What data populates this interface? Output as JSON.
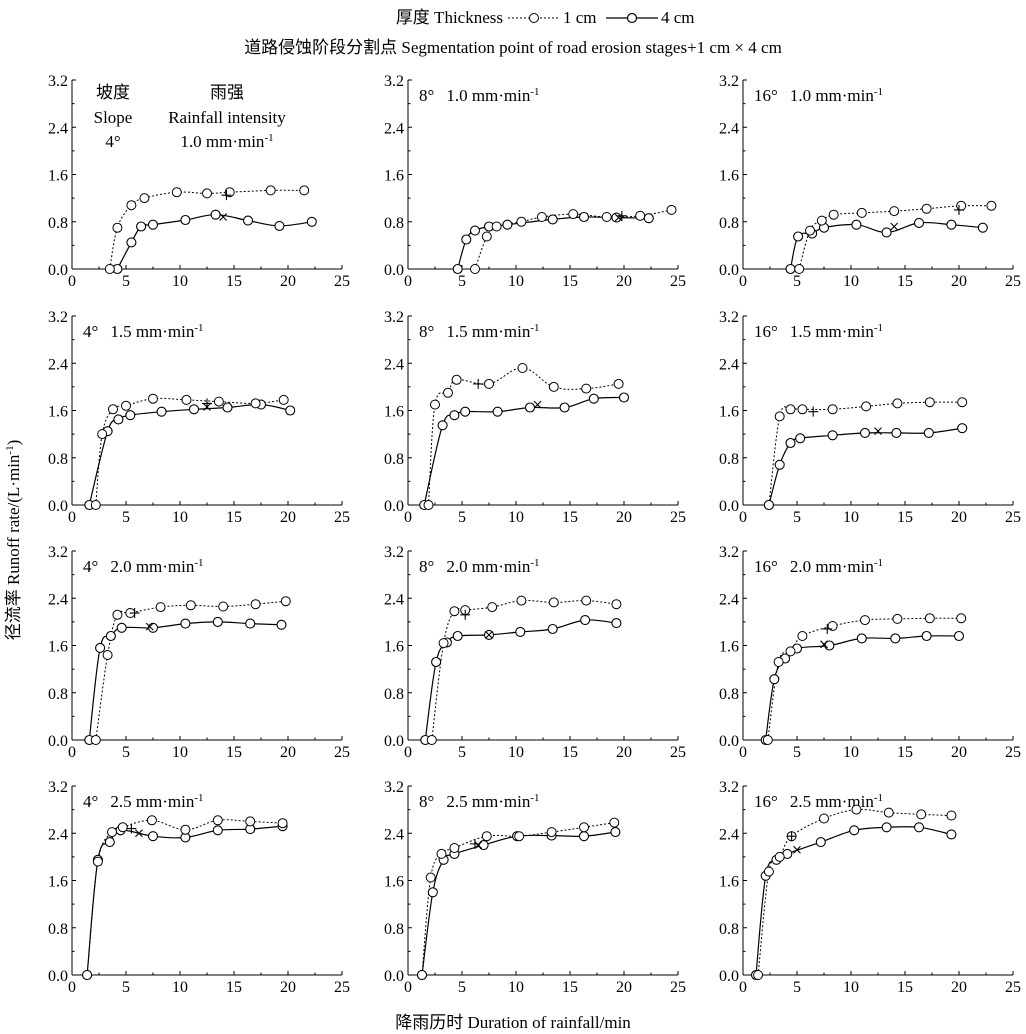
{
  "legend": {
    "thickness_label": "厚度 Thickness",
    "series_1cm": "1 cm",
    "series_4cm": "4 cm",
    "segmentation_label": "道路侵蚀阶段分割点 Segmentation point of road erosion stages",
    "segmentation_markers": "+1 cm × 4 cm"
  },
  "axes": {
    "xlabel": "降雨历时 Duration of rainfall/min",
    "ylabel": "径流率 Runoff rate/(L·min",
    "ylabel_sup": "-1",
    "ylabel_close": ")"
  },
  "first_panel_note": {
    "slope_cn": "坡度",
    "slope_en": "Slope",
    "rain_cn": "雨强",
    "rain_en": "Rainfall intensity"
  },
  "chart_data": {
    "type": "line",
    "grid": false,
    "xlim": [
      0,
      25
    ],
    "ylim": [
      0,
      3.2
    ],
    "xticks": [
      "0",
      "5",
      "10",
      "15",
      "20",
      "25"
    ],
    "yticks": [
      "0.0",
      "0.8",
      "1.6",
      "2.4",
      "3.2"
    ],
    "panels": [
      {
        "slope": "4°",
        "intensity": "1.0 mm·min",
        "unit_sup": "-1",
        "s1": [
          [
            3.5,
            0
          ],
          [
            4.2,
            0.7
          ],
          [
            5.5,
            1.08
          ],
          [
            6.7,
            1.2
          ],
          [
            9.7,
            1.3
          ],
          [
            12.5,
            1.28
          ],
          [
            14.6,
            1.3
          ],
          [
            18.4,
            1.33
          ],
          [
            21.5,
            1.33
          ]
        ],
        "s4": [
          [
            4.2,
            0
          ],
          [
            5.5,
            0.45
          ],
          [
            6.4,
            0.72
          ],
          [
            7.5,
            0.75
          ],
          [
            10.5,
            0.83
          ],
          [
            13.3,
            0.92
          ],
          [
            16.3,
            0.82
          ],
          [
            19.2,
            0.73
          ],
          [
            22.2,
            0.8
          ]
        ],
        "plus": [
          14.3,
          1.25
        ],
        "cross": [
          14,
          0.88
        ]
      },
      {
        "slope": "8°",
        "intensity": "1.0 mm·min",
        "unit_sup": "-1",
        "s1": [
          [
            6.2,
            0
          ],
          [
            7.3,
            0.55
          ],
          [
            8.2,
            0.72
          ],
          [
            10.5,
            0.8
          ],
          [
            12.4,
            0.88
          ],
          [
            15.3,
            0.93
          ],
          [
            18.4,
            0.88
          ],
          [
            21.5,
            0.9
          ],
          [
            24.4,
            1.0
          ]
        ],
        "s4": [
          [
            4.6,
            0
          ],
          [
            5.4,
            0.5
          ],
          [
            6.2,
            0.65
          ],
          [
            7.5,
            0.72
          ],
          [
            9.2,
            0.75
          ],
          [
            13.4,
            0.84
          ],
          [
            16.3,
            0.88
          ],
          [
            19.3,
            0.87
          ],
          [
            22.3,
            0.86
          ]
        ],
        "plus": [
          19.8,
          0.9
        ],
        "cross": [
          19.5,
          0.87
        ]
      },
      {
        "slope": "16°",
        "intensity": "1.0 mm·min",
        "unit_sup": "-1",
        "s1": [
          [
            5.2,
            0
          ],
          [
            6.2,
            0.65
          ],
          [
            7.3,
            0.82
          ],
          [
            8.4,
            0.92
          ],
          [
            11,
            0.95
          ],
          [
            14,
            0.98
          ],
          [
            17,
            1.02
          ],
          [
            20.2,
            1.07
          ],
          [
            23,
            1.07
          ]
        ],
        "s4": [
          [
            4.4,
            0
          ],
          [
            5.1,
            0.55
          ],
          [
            6.4,
            0.6
          ],
          [
            7.5,
            0.7
          ],
          [
            10.5,
            0.75
          ],
          [
            13.3,
            0.62
          ],
          [
            16.3,
            0.78
          ],
          [
            19.3,
            0.75
          ],
          [
            22.2,
            0.7
          ]
        ],
        "plus": [
          20,
          1.0
        ],
        "cross": [
          14,
          0.72
        ]
      },
      {
        "slope": "4°",
        "intensity": "1.5 mm·min",
        "unit_sup": "-1",
        "s1": [
          [
            2.2,
            0
          ],
          [
            2.8,
            1.2
          ],
          [
            3.8,
            1.62
          ],
          [
            5,
            1.68
          ],
          [
            7.5,
            1.8
          ],
          [
            10.6,
            1.78
          ],
          [
            13.6,
            1.75
          ],
          [
            17,
            1.72
          ],
          [
            19.6,
            1.78
          ]
        ],
        "s4": [
          [
            1.6,
            0
          ],
          [
            3.3,
            1.25
          ],
          [
            4.3,
            1.45
          ],
          [
            5.4,
            1.52
          ],
          [
            8.3,
            1.58
          ],
          [
            11.3,
            1.62
          ],
          [
            14.4,
            1.65
          ],
          [
            17.5,
            1.7
          ],
          [
            20.2,
            1.6
          ]
        ],
        "plus": [
          12.5,
          1.72
        ],
        "cross": [
          12.5,
          1.66
        ]
      },
      {
        "slope": "8°",
        "intensity": "1.5 mm·min",
        "unit_sup": "-1",
        "s1": [
          [
            1.9,
            0
          ],
          [
            2.5,
            1.7
          ],
          [
            3.7,
            1.9
          ],
          [
            4.5,
            2.12
          ],
          [
            7.5,
            2.05
          ],
          [
            10.6,
            2.32
          ],
          [
            13.5,
            2.0
          ],
          [
            16.5,
            1.97
          ],
          [
            19.5,
            2.05
          ]
        ],
        "s4": [
          [
            1.5,
            0
          ],
          [
            3.2,
            1.35
          ],
          [
            4.3,
            1.52
          ],
          [
            5.3,
            1.58
          ],
          [
            8.3,
            1.58
          ],
          [
            11.3,
            1.65
          ],
          [
            14.5,
            1.65
          ],
          [
            17.2,
            1.8
          ],
          [
            20,
            1.82
          ]
        ],
        "plus": [
          6.5,
          2.05
        ],
        "cross": [
          12,
          1.7
        ]
      },
      {
        "slope": "16°",
        "intensity": "1.5 mm·min",
        "unit_sup": "-1",
        "s1": [
          [
            2.4,
            0
          ],
          [
            3.4,
            1.5
          ],
          [
            4.4,
            1.62
          ],
          [
            5.5,
            1.62
          ],
          [
            8.3,
            1.62
          ],
          [
            11.4,
            1.67
          ],
          [
            14.3,
            1.72
          ],
          [
            17.3,
            1.74
          ],
          [
            20.3,
            1.74
          ]
        ],
        "s4": [
          [
            2.4,
            0
          ],
          [
            3.4,
            0.68
          ],
          [
            4.4,
            1.05
          ],
          [
            5.3,
            1.13
          ],
          [
            8.3,
            1.18
          ],
          [
            11.3,
            1.22
          ],
          [
            14.2,
            1.22
          ],
          [
            17.2,
            1.22
          ],
          [
            20.3,
            1.3
          ]
        ],
        "plus": [
          6.5,
          1.58
        ],
        "cross": [
          12.5,
          1.25
        ]
      },
      {
        "slope": "4°",
        "intensity": "2.0 mm·min",
        "unit_sup": "-1",
        "s1": [
          [
            2.2,
            0
          ],
          [
            3.3,
            1.44
          ],
          [
            4.2,
            2.12
          ],
          [
            5.4,
            2.15
          ],
          [
            8.2,
            2.25
          ],
          [
            11,
            2.28
          ],
          [
            14,
            2.26
          ],
          [
            17,
            2.3
          ],
          [
            19.8,
            2.35
          ]
        ],
        "s4": [
          [
            1.6,
            0
          ],
          [
            2.6,
            1.56
          ],
          [
            3.6,
            1.76
          ],
          [
            4.6,
            1.9
          ],
          [
            7.5,
            1.9
          ],
          [
            10.5,
            1.97
          ],
          [
            13.5,
            2.0
          ],
          [
            16.5,
            1.97
          ],
          [
            19.4,
            1.95
          ]
        ],
        "plus": [
          5.8,
          2.15
        ],
        "cross": [
          7.2,
          1.92
        ]
      },
      {
        "slope": "8°",
        "intensity": "2.0 mm·min",
        "unit_sup": "-1",
        "s1": [
          [
            2.2,
            0
          ],
          [
            3.3,
            1.64
          ],
          [
            4.3,
            2.18
          ],
          [
            5.3,
            2.2
          ],
          [
            7.8,
            2.25
          ],
          [
            10.5,
            2.36
          ],
          [
            13.5,
            2.33
          ],
          [
            16.5,
            2.36
          ],
          [
            19.3,
            2.3
          ]
        ],
        "s4": [
          [
            1.6,
            0
          ],
          [
            2.6,
            1.32
          ],
          [
            3.6,
            1.65
          ],
          [
            4.6,
            1.76
          ],
          [
            7.5,
            1.78
          ],
          [
            10.4,
            1.83
          ],
          [
            13.4,
            1.88
          ],
          [
            16.4,
            2.03
          ],
          [
            19.3,
            1.98
          ]
        ],
        "plus": [
          5.3,
          2.12
        ],
        "cross": [
          7.5,
          1.78
        ]
      },
      {
        "slope": "16°",
        "intensity": "2.0 mm·min",
        "unit_sup": "-1",
        "s1": [
          [
            2.3,
            0
          ],
          [
            3.3,
            1.32
          ],
          [
            4.4,
            1.5
          ],
          [
            5.5,
            1.76
          ],
          [
            8.3,
            1.93
          ],
          [
            11.3,
            2.03
          ],
          [
            14.3,
            2.05
          ],
          [
            17.3,
            2.06
          ],
          [
            20.2,
            2.06
          ]
        ],
        "s4": [
          [
            2.1,
            0
          ],
          [
            2.9,
            1.03
          ],
          [
            3.9,
            1.38
          ],
          [
            5,
            1.55
          ],
          [
            8,
            1.6
          ],
          [
            11,
            1.72
          ],
          [
            14.1,
            1.72
          ],
          [
            17,
            1.76
          ],
          [
            20,
            1.76
          ]
        ],
        "plus": [
          7.8,
          1.88
        ],
        "cross": [
          7.5,
          1.62
        ]
      },
      {
        "slope": "4°",
        "intensity": "2.5 mm·min",
        "unit_sup": "-1",
        "s1": [
          [
            1.4,
            0
          ],
          [
            2.4,
            1.92
          ],
          [
            3.7,
            2.42
          ],
          [
            4.7,
            2.5
          ],
          [
            7.4,
            2.62
          ],
          [
            10.5,
            2.46
          ],
          [
            13.5,
            2.62
          ],
          [
            16.5,
            2.6
          ],
          [
            19.5,
            2.57
          ]
        ],
        "s4": [
          [
            1.4,
            0
          ],
          [
            2.4,
            1.95
          ],
          [
            3.5,
            2.25
          ],
          [
            4.5,
            2.45
          ],
          [
            7.5,
            2.35
          ],
          [
            10.5,
            2.33
          ],
          [
            13.5,
            2.45
          ],
          [
            16.5,
            2.47
          ],
          [
            19.5,
            2.52
          ]
        ],
        "plus": [
          5.5,
          2.48
        ],
        "cross": [
          6.2,
          2.4
        ]
      },
      {
        "slope": "8°",
        "intensity": "2.5 mm·min",
        "unit_sup": "-1",
        "s1": [
          [
            1.3,
            0
          ],
          [
            2.1,
            1.65
          ],
          [
            3.1,
            2.05
          ],
          [
            4.3,
            2.15
          ],
          [
            7.3,
            2.35
          ],
          [
            10.3,
            2.35
          ],
          [
            13.3,
            2.42
          ],
          [
            16.3,
            2.5
          ],
          [
            19.1,
            2.58
          ]
        ],
        "s4": [
          [
            1.3,
            0
          ],
          [
            2.3,
            1.4
          ],
          [
            3.3,
            1.95
          ],
          [
            4.3,
            2.05
          ],
          [
            7,
            2.2
          ],
          [
            10.1,
            2.35
          ],
          [
            13.3,
            2.36
          ],
          [
            16.3,
            2.35
          ],
          [
            19.2,
            2.42
          ]
        ],
        "plus": [
          6.2,
          2.22
        ],
        "cross": [
          6.5,
          2.2
        ]
      },
      {
        "slope": "16°",
        "intensity": "2.5 mm·min",
        "unit_sup": "-1",
        "s1": [
          [
            1.4,
            0
          ],
          [
            2.4,
            1.75
          ],
          [
            3.4,
            2.0
          ],
          [
            4.5,
            2.35
          ],
          [
            7.5,
            2.65
          ],
          [
            10.5,
            2.8
          ],
          [
            13.5,
            2.75
          ],
          [
            16.5,
            2.72
          ],
          [
            19.3,
            2.7
          ]
        ],
        "s4": [
          [
            1.2,
            0
          ],
          [
            2.1,
            1.68
          ],
          [
            3.1,
            1.95
          ],
          [
            4.1,
            2.05
          ],
          [
            7.2,
            2.25
          ],
          [
            10.3,
            2.45
          ],
          [
            13.3,
            2.5
          ],
          [
            16.3,
            2.5
          ],
          [
            19.3,
            2.38
          ]
        ],
        "plus": [
          4.5,
          2.35
        ],
        "cross": [
          5,
          2.12
        ]
      }
    ]
  }
}
